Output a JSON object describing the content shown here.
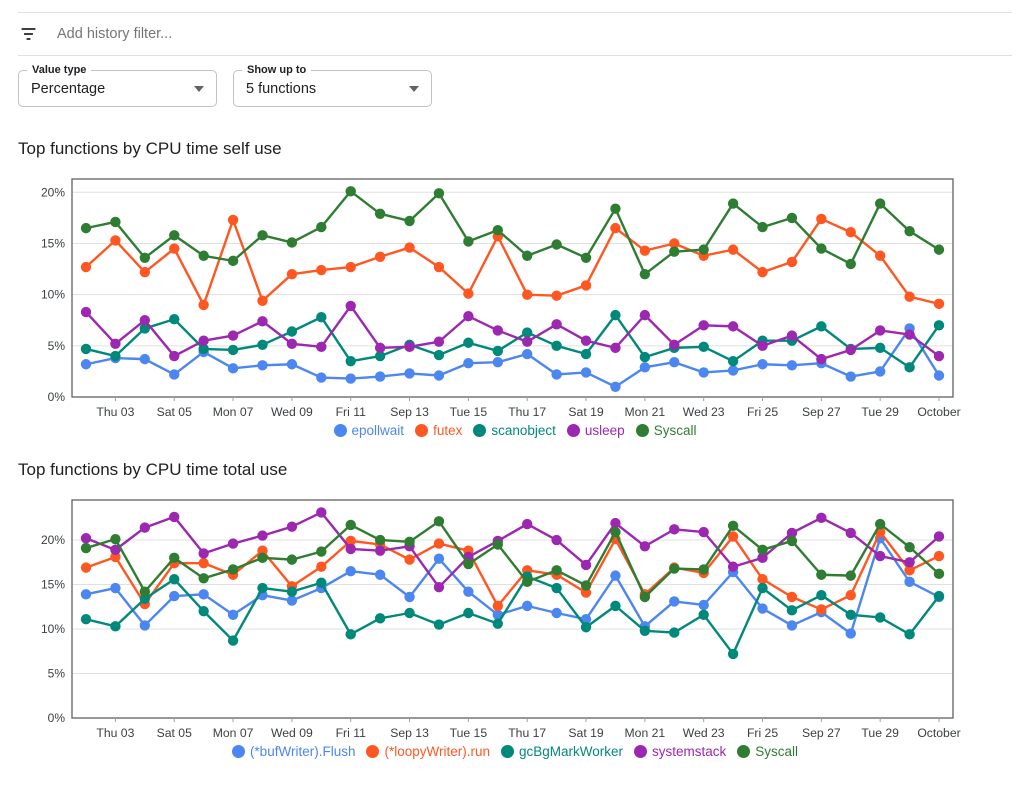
{
  "filter_bar": {
    "icon": "filter-list-icon",
    "placeholder": "Add history filter..."
  },
  "controls": {
    "value_type": {
      "label": "Value type",
      "value": "Percentage"
    },
    "show_up_to": {
      "label": "Show up to",
      "value": "5 functions"
    }
  },
  "colors": {
    "blue": "#4c86f0",
    "orange": "#ff5722",
    "teal": "#00897b",
    "purple": "#9c27b0",
    "green": "#2e7d32",
    "grid": "#e0e0e0",
    "axis": "#616161",
    "tick": "#9aa0a6",
    "tick_text": "#3c4043",
    "text": "#202124"
  },
  "chart_data": [
    {
      "type": "line",
      "title": "Top functions by CPU time self use",
      "xlabel": "",
      "ylabel": "",
      "grid": true,
      "legend_position": "bottom",
      "ylim": [
        0,
        21.3
      ],
      "yticks": [
        {
          "value": 0,
          "label": "0%"
        },
        {
          "value": 5,
          "label": "5%"
        },
        {
          "value": 10,
          "label": "10%"
        },
        {
          "value": 15,
          "label": "15%"
        },
        {
          "value": 20,
          "label": "20%"
        }
      ],
      "x_tick_labels": [
        "Thu 03",
        "Sat 05",
        "Mon 07",
        "Wed 09",
        "Fri 11",
        "Sep 13",
        "Tue 15",
        "Thu 17",
        "Sat 19",
        "Mon 21",
        "Wed 23",
        "Fri 25",
        "Sep 27",
        "Tue 29",
        "October"
      ],
      "series": [
        {
          "name": "epollwait",
          "color": "blue",
          "values": [
            3.2,
            3.8,
            3.7,
            2.2,
            4.4,
            2.8,
            3.1,
            3.2,
            1.9,
            1.8,
            2.0,
            2.3,
            2.1,
            3.3,
            3.4,
            4.2,
            2.2,
            2.4,
            1.0,
            2.9,
            3.4,
            2.4,
            2.6,
            3.2,
            3.1,
            3.3,
            2.0,
            2.5,
            6.7,
            2.1
          ]
        },
        {
          "name": "futex",
          "color": "orange",
          "values": [
            12.7,
            15.3,
            12.2,
            14.5,
            9.0,
            17.3,
            9.4,
            12.0,
            12.4,
            12.7,
            13.7,
            14.6,
            12.7,
            10.1,
            15.7,
            10.0,
            9.9,
            10.9,
            16.5,
            14.3,
            15.0,
            13.8,
            14.4,
            12.2,
            13.2,
            17.4,
            16.1,
            13.8,
            9.8,
            9.1
          ]
        },
        {
          "name": "scanobject",
          "color": "teal",
          "values": [
            4.7,
            4.0,
            6.7,
            7.6,
            4.7,
            4.6,
            5.1,
            6.4,
            7.8,
            3.5,
            4.0,
            5.1,
            4.1,
            5.3,
            4.5,
            6.3,
            5.0,
            4.2,
            8.0,
            3.9,
            4.8,
            4.9,
            3.5,
            5.5,
            5.5,
            6.9,
            4.7,
            4.8,
            2.9,
            7.0
          ]
        },
        {
          "name": "usleep",
          "color": "purple",
          "values": [
            8.3,
            5.2,
            7.5,
            4.0,
            5.5,
            6.0,
            7.4,
            5.2,
            4.9,
            8.9,
            4.8,
            4.9,
            5.4,
            7.9,
            6.5,
            5.4,
            7.1,
            5.5,
            4.8,
            8.0,
            5.1,
            7.0,
            6.9,
            5.0,
            6.0,
            3.7,
            4.6,
            6.5,
            6.1,
            4.0
          ]
        },
        {
          "name": "Syscall",
          "color": "green",
          "values": [
            16.5,
            17.1,
            13.6,
            15.8,
            13.8,
            13.3,
            15.8,
            15.1,
            16.6,
            20.1,
            17.9,
            17.2,
            19.9,
            15.2,
            16.3,
            13.8,
            14.9,
            13.6,
            18.4,
            12.0,
            14.2,
            14.4,
            18.9,
            16.6,
            17.5,
            14.5,
            13.0,
            18.9,
            16.2,
            14.4
          ]
        }
      ]
    },
    {
      "type": "line",
      "title": "Top functions by CPU time total use",
      "xlabel": "",
      "ylabel": "",
      "grid": true,
      "legend_position": "bottom",
      "ylim": [
        0,
        24.5
      ],
      "yticks": [
        {
          "value": 0,
          "label": "0%"
        },
        {
          "value": 5,
          "label": "5%"
        },
        {
          "value": 10,
          "label": "10%"
        },
        {
          "value": 15,
          "label": "15%"
        },
        {
          "value": 20,
          "label": "20%"
        }
      ],
      "x_tick_labels": [
        "Thu 03",
        "Sat 05",
        "Mon 07",
        "Wed 09",
        "Fri 11",
        "Sep 13",
        "Tue 15",
        "Thu 17",
        "Sat 19",
        "Mon 21",
        "Wed 23",
        "Fri 25",
        "Sep 27",
        "Tue 29",
        "October"
      ],
      "series": [
        {
          "name": "(*bufWriter).Flush",
          "color": "blue",
          "values": [
            13.9,
            14.6,
            10.4,
            13.7,
            13.9,
            11.6,
            13.8,
            13.2,
            14.6,
            16.5,
            16.1,
            13.6,
            17.9,
            14.2,
            11.6,
            12.6,
            11.8,
            11.1,
            16.0,
            10.3,
            13.1,
            12.7,
            16.4,
            12.3,
            10.4,
            11.9,
            9.5,
            20.2,
            15.3,
            13.6
          ]
        },
        {
          "name": "(*loopyWriter).run",
          "color": "orange",
          "values": [
            16.9,
            18.1,
            12.8,
            17.4,
            17.4,
            16.1,
            18.8,
            14.8,
            17.0,
            19.9,
            19.5,
            17.8,
            19.6,
            18.8,
            12.6,
            16.6,
            16.1,
            14.1,
            20.1,
            13.9,
            16.9,
            16.3,
            20.4,
            15.6,
            13.6,
            12.2,
            13.8,
            20.9,
            16.6,
            18.2
          ]
        },
        {
          "name": "gcBgMarkWorker",
          "color": "teal",
          "values": [
            11.1,
            10.3,
            13.4,
            15.6,
            12.0,
            8.7,
            14.6,
            14.2,
            15.2,
            9.4,
            11.2,
            11.8,
            10.5,
            11.8,
            10.6,
            15.9,
            14.6,
            10.2,
            12.6,
            9.8,
            9.6,
            11.6,
            7.2,
            14.6,
            12.1,
            13.8,
            11.6,
            11.3,
            9.4,
            13.7
          ]
        },
        {
          "name": "systemstack",
          "color": "purple",
          "values": [
            20.2,
            18.9,
            21.4,
            22.6,
            18.5,
            19.6,
            20.5,
            21.5,
            23.1,
            19.0,
            18.8,
            19.3,
            14.7,
            18.1,
            19.9,
            21.8,
            20.0,
            17.2,
            21.9,
            19.3,
            21.2,
            20.9,
            17.0,
            18.0,
            20.8,
            22.5,
            20.8,
            18.2,
            17.5,
            20.4
          ]
        },
        {
          "name": "Syscall",
          "color": "green",
          "values": [
            19.1,
            20.1,
            14.2,
            18.0,
            15.7,
            16.7,
            18.0,
            17.8,
            18.7,
            21.7,
            20.0,
            19.8,
            22.1,
            17.3,
            19.5,
            15.3,
            16.6,
            14.9,
            20.9,
            13.6,
            16.8,
            16.7,
            21.6,
            18.9,
            19.9,
            16.1,
            16.0,
            21.8,
            19.2,
            16.2
          ]
        }
      ]
    }
  ]
}
